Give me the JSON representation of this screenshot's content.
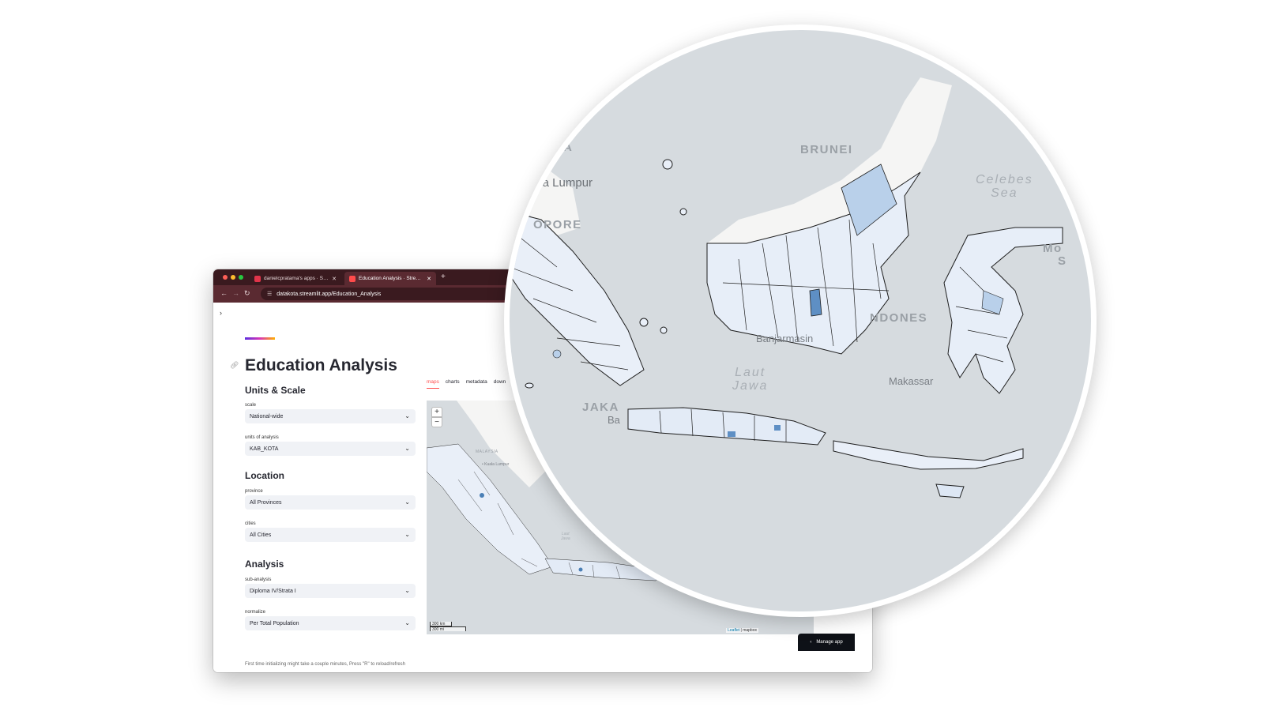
{
  "browser": {
    "tabs": [
      {
        "label": "danielcpratama's apps · Streamlit",
        "active": false
      },
      {
        "label": "Education Analysis · Streamlit",
        "active": true
      }
    ],
    "new_tab": "+",
    "url": "datakota.streamlit.app/Education_Analysis"
  },
  "app": {
    "title": "Education Analysis",
    "sections": {
      "units": "Units & Scale",
      "location": "Location",
      "analysis": "Analysis"
    },
    "fields": {
      "scale": {
        "label": "scale",
        "value": "National-wide"
      },
      "units": {
        "label": "units of analysis",
        "value": "KAB_KOTA"
      },
      "province": {
        "label": "province",
        "value": "All Provinces"
      },
      "cities": {
        "label": "cities",
        "value": "All Cities"
      },
      "sub_analysis": {
        "label": "sub-analysis",
        "value": "Diploma IV/Strata I"
      },
      "normalize": {
        "label": "normalize",
        "value": "Per Total Population"
      }
    },
    "tabs": [
      "maps",
      "charts",
      "metadata",
      "down"
    ],
    "active_tab": "maps",
    "footnote": "First time initializing might take a couple minutes, Press \"R\" to reload/refresh",
    "manage_app": "Manage app"
  },
  "mini_map": {
    "zoom_in": "+",
    "zoom_out": "−",
    "scale_km": "300 km",
    "scale_mi": "300 mi",
    "attribution_leaflet": "Leaflet",
    "attribution_sep": " | ",
    "attribution_mapbox": "mapbox",
    "labels": {
      "malaysia": "MALAYSIA",
      "kuala_lumpur": "• Kuala Lumpur",
      "laut_jawa": "Laut\nJawa"
    }
  },
  "zoom_map": {
    "labels": {
      "a": "A",
      "brunei": "BRUNEI",
      "kuala_lumpur": "ala Lumpur",
      "singapore": "OPORE",
      "celebes_sea": "Celebes\nSea",
      "indonesia": "NDONES",
      "banjarmasin": "Banjarmasin",
      "laut_jawa": "Laut\nJawa",
      "jakarta": "JAKA",
      "makassar": "Makassar",
      "bandung": "Ba",
      "mo": "Mo",
      "s": "S"
    }
  },
  "colors": {
    "streamlit_red": "#ff4b4b",
    "titlebar": "#3a1a1f",
    "map_sea": "#d6dbdf",
    "map_land": "#f5f5f4",
    "choropleth_light": "#eef3fb",
    "choropleth_dark": "#4a7fb5"
  }
}
